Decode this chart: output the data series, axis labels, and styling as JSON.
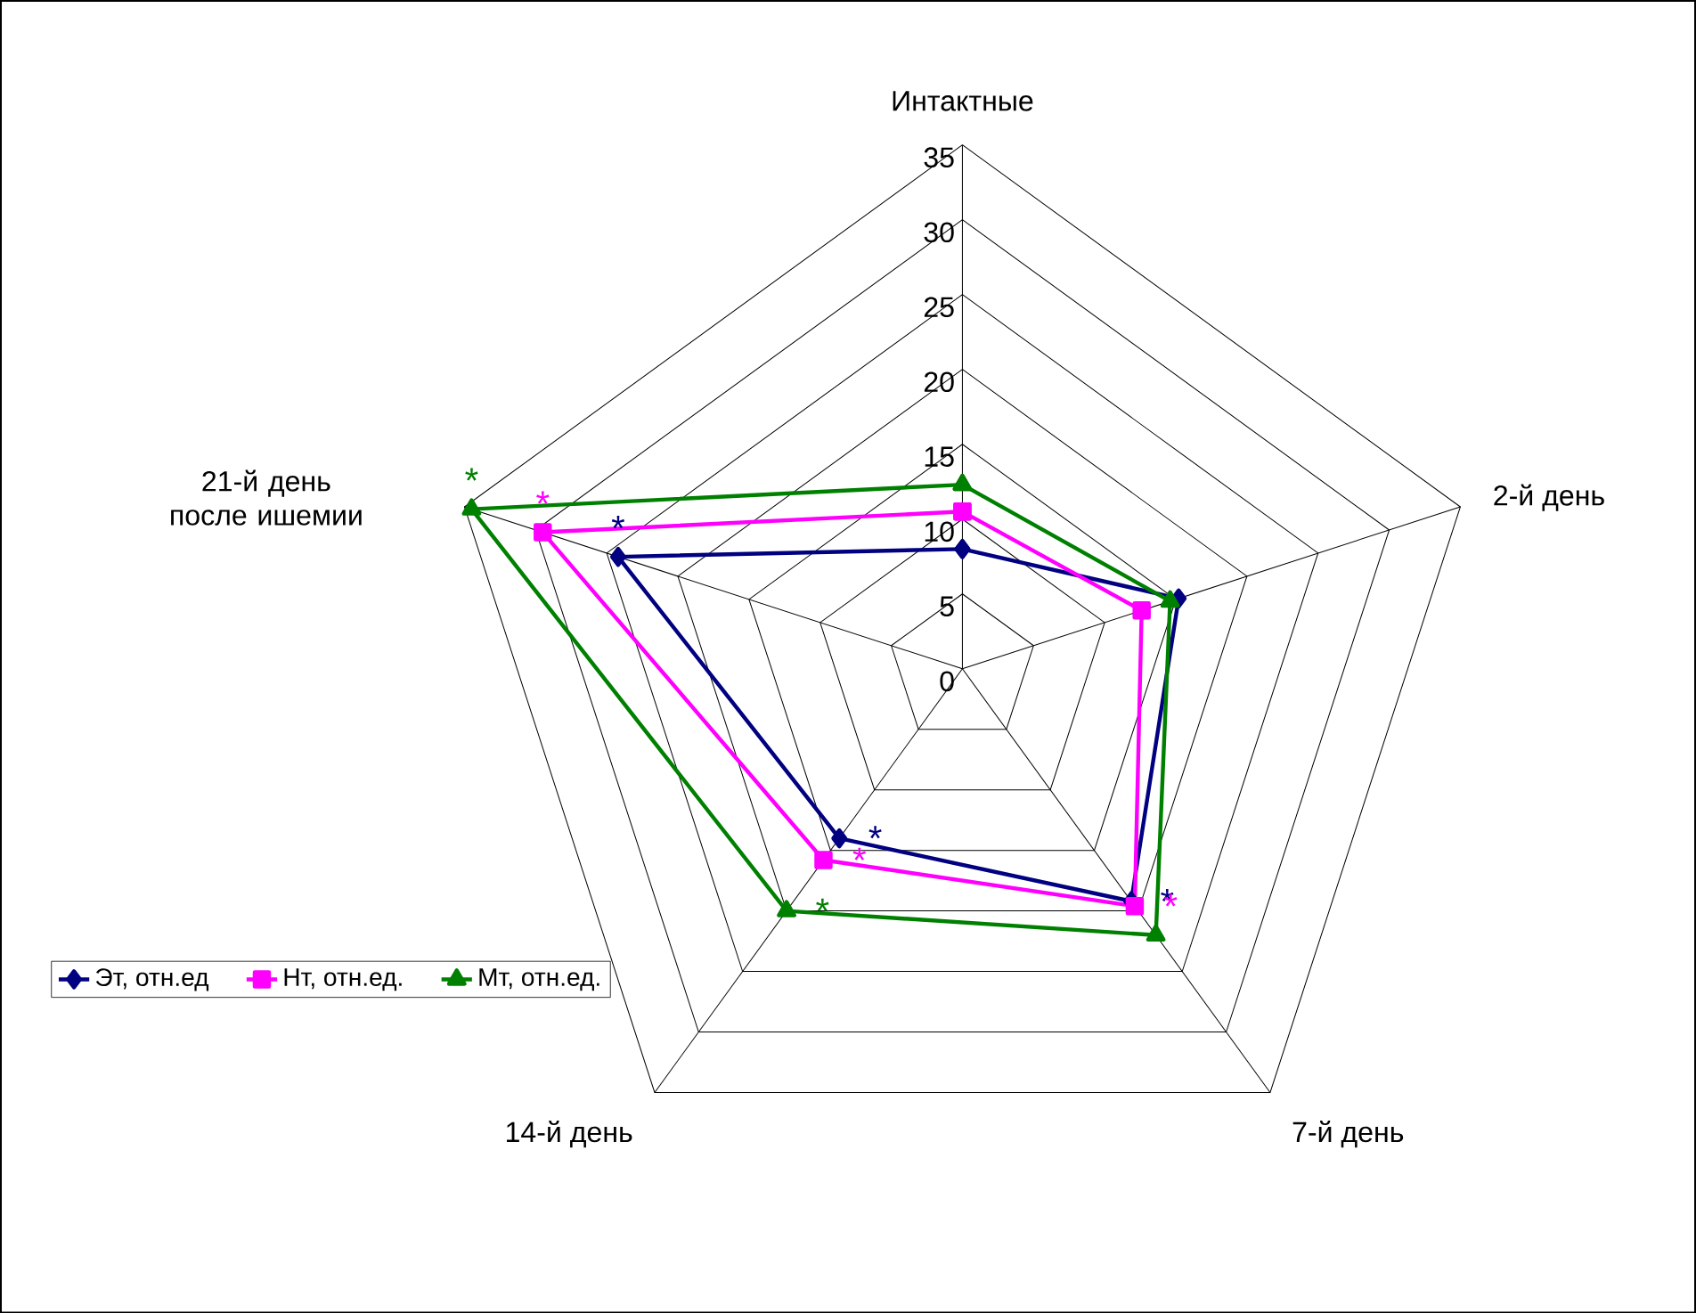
{
  "chart_data": {
    "type": "radar",
    "categories": [
      "Интактные",
      "2-й день",
      "7-й день",
      "14-й день",
      "21-й день после ишемии"
    ],
    "ylim": [
      0,
      35
    ],
    "yticks": [
      0,
      5,
      10,
      15,
      20,
      25,
      30,
      35
    ],
    "legend": "bottom",
    "series": [
      {
        "name": "Эт, отн.ед",
        "color": "#000080",
        "marker": "diamond",
        "values": [
          8,
          15.2,
          19.2,
          14,
          24.2
        ],
        "value_labels": [
          null,
          null,
          "*",
          "*",
          "*"
        ]
      },
      {
        "name": "Нт, отн.ед.",
        "color": "#ff00ff",
        "marker": "square",
        "values": [
          10.5,
          12.6,
          19.6,
          15.8,
          29.5
        ],
        "value_labels": [
          null,
          null,
          "*",
          "*",
          "*"
        ]
      },
      {
        "name": "Мт, отн.ед.",
        "color": "#008000",
        "marker": "triangle",
        "values": [
          12.3,
          14.6,
          22,
          20,
          34.5
        ],
        "value_labels": [
          null,
          null,
          null,
          "*",
          "*"
        ]
      }
    ]
  }
}
